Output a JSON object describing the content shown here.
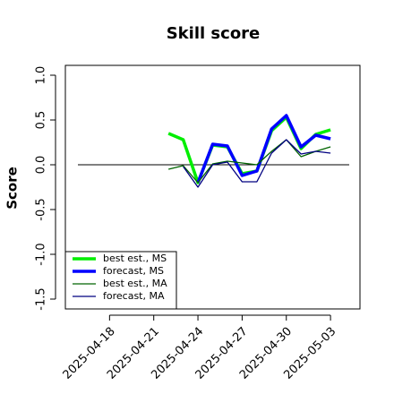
{
  "chart_data": {
    "type": "line",
    "title": "Skill score",
    "y_label": "Score",
    "x": [
      "2025-04-22",
      "2025-04-23",
      "2025-04-24",
      "2025-04-25",
      "2025-04-26",
      "2025-04-27",
      "2025-04-28",
      "2025-04-29",
      "2025-04-30",
      "2025-05-01",
      "2025-05-02",
      "2025-05-03"
    ],
    "series": [
      {
        "name": "best est., MS",
        "color": "#00ee00",
        "width": 3.5,
        "values": [
          0.35,
          0.28,
          -0.2,
          0.22,
          0.2,
          -0.1,
          -0.07,
          0.38,
          0.53,
          0.18,
          0.34,
          0.39
        ]
      },
      {
        "name": "forecast, MS",
        "color": "#0000ff",
        "width": 3.5,
        "values": [
          null,
          null,
          -0.2,
          0.23,
          0.21,
          -0.12,
          -0.07,
          0.4,
          0.55,
          0.2,
          0.33,
          0.29
        ]
      },
      {
        "name": "best est., MA",
        "color": "#006400",
        "width": 1.3,
        "values": [
          -0.05,
          -0.01,
          -0.2,
          0.01,
          0.04,
          0.02,
          0.0,
          0.15,
          0.28,
          0.09,
          0.15,
          0.2
        ]
      },
      {
        "name": "forecast, MA",
        "color": "#000080",
        "width": 1.3,
        "values": [
          null,
          -0.02,
          -0.25,
          0.0,
          0.03,
          -0.19,
          -0.19,
          0.13,
          0.28,
          0.12,
          0.15,
          0.13
        ]
      }
    ],
    "hline": 0,
    "xlim": [
      "2025-04-15",
      "2025-05-05"
    ],
    "xticks": [
      "2025-04-18",
      "2025-04-21",
      "2025-04-24",
      "2025-04-27",
      "2025-04-30",
      "2025-05-03"
    ],
    "xtick_label_colors": [
      "#000000",
      "#000000",
      "#228b22",
      "#000000",
      "#000000",
      "#000000"
    ],
    "ylim": [
      -1.61,
      1.11
    ],
    "yticks": [
      -1.5,
      {
        "value": -1,
        "label": "-1.0"
      },
      -0.5,
      {
        "value": 0,
        "label": "0.0"
      },
      0.5,
      {
        "value": 1,
        "label": "1.0"
      }
    ],
    "legend": "bottomleft"
  }
}
